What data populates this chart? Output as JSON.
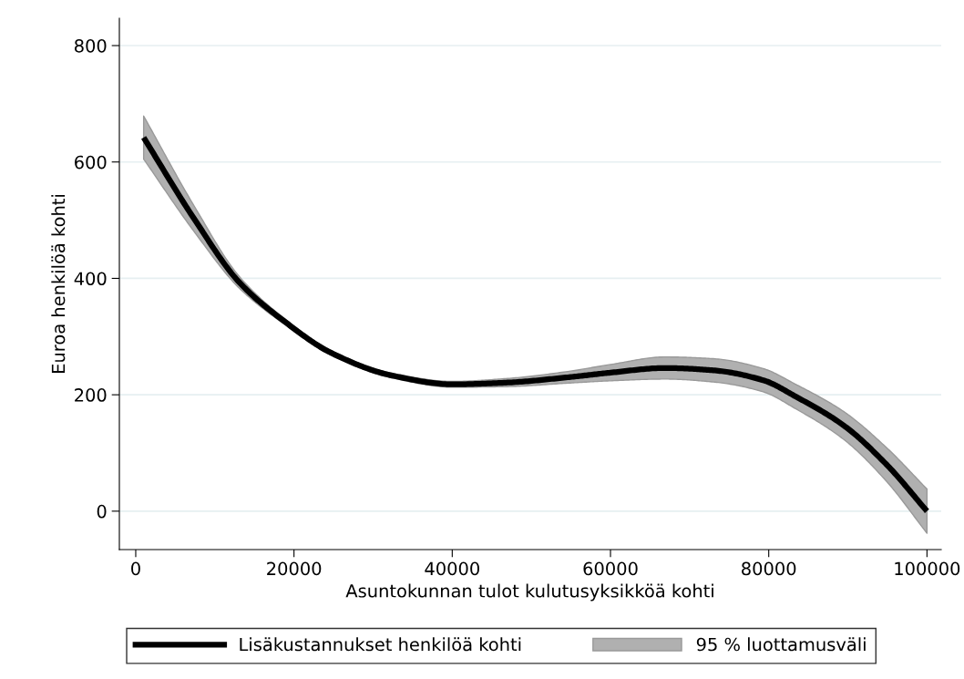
{
  "chart_data": {
    "type": "line",
    "xlabel": "Asuntokunnan tulot kulutusyksikköä kohti",
    "ylabel": "Euroa henkilöä kohti",
    "annotations": [
      "95 % luottamusväli"
    ],
    "x": [
      1000,
      7400,
      13100,
      18900,
      24700,
      32400,
      40100,
      47000,
      54600,
      60000,
      66900,
      73000,
      79300,
      83400,
      89500,
      94900,
      100000
    ],
    "series": [
      {
        "name": "Lisäkustannukset henkilöä kohti",
        "color": "#000000",
        "values": [
          642,
          502,
          393,
          325,
          272,
          233,
          218,
          221,
          230,
          238,
          246,
          242,
          225,
          197,
          147,
          80,
          0
        ],
        "lower": [
          605,
          480,
          383,
          320,
          268,
          229,
          213,
          214,
          220,
          224,
          227,
          222,
          205,
          176,
          123,
          51,
          -38
        ],
        "upper": [
          679,
          524,
          403,
          330,
          276,
          237,
          223,
          228,
          240,
          252,
          265,
          262,
          245,
          218,
          171,
          109,
          38
        ]
      }
    ],
    "xlim": [
      -2070,
      101800
    ],
    "ylim": [
      -66,
      847
    ],
    "xticks": [
      0,
      20000,
      40000,
      60000,
      80000,
      100000
    ],
    "yticks": [
      0,
      200,
      400,
      600,
      800
    ],
    "grid": "y",
    "legend": "bottom",
    "marker": "none",
    "line_style": "solid"
  }
}
